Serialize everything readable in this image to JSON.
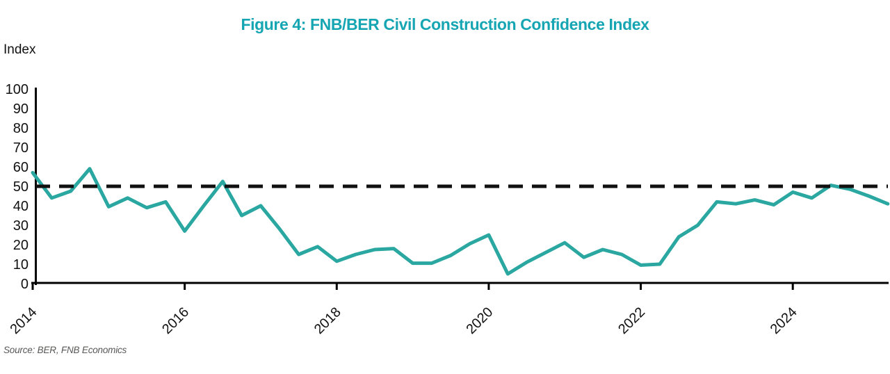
{
  "title": "Figure 4: FNB/BER Civil Construction Confidence Index",
  "y_axis_label": "Index",
  "source": "Source: BER, FNB Economics",
  "colors": {
    "title": "#16a5b2",
    "line": "#29a7a0",
    "axis": "#000000",
    "reference_line": "#111111",
    "tick_text": "#111111",
    "source_text": "#575756"
  },
  "chart_data": {
    "type": "line",
    "title": "Figure 4: FNB/BER Civil Construction Confidence Index",
    "ylabel": "Index",
    "xlabel": "",
    "frequency": "quarterly",
    "ylim": [
      0,
      100
    ],
    "yticks": [
      100,
      90,
      80,
      70,
      60,
      50,
      40,
      30,
      20,
      10,
      0
    ],
    "xticks": [
      "2014",
      "2016",
      "2018",
      "2020",
      "2022",
      "2024"
    ],
    "reference_line_y": 50,
    "grid": false,
    "legend": "none",
    "series_name": "FNB/BER Civil Construction Confidence Index",
    "x": [
      "2014Q1",
      "2014Q2",
      "2014Q3",
      "2014Q4",
      "2015Q1",
      "2015Q2",
      "2015Q3",
      "2015Q4",
      "2016Q1",
      "2016Q2",
      "2016Q3",
      "2016Q4",
      "2017Q1",
      "2017Q2",
      "2017Q3",
      "2017Q4",
      "2018Q1",
      "2018Q2",
      "2018Q3",
      "2018Q4",
      "2019Q1",
      "2019Q2",
      "2019Q3",
      "2019Q4",
      "2020Q1",
      "2020Q2",
      "2020Q3",
      "2020Q4",
      "2021Q1",
      "2021Q2",
      "2021Q3",
      "2021Q4",
      "2022Q1",
      "2022Q2",
      "2022Q3",
      "2022Q4",
      "2023Q1",
      "2023Q2",
      "2023Q3",
      "2023Q4",
      "2024Q1",
      "2024Q2",
      "2024Q3",
      "2024Q4",
      "2025Q1",
      "2025Q2"
    ],
    "values": [
      57,
      44,
      47.5,
      59,
      39.5,
      44,
      39,
      42,
      27,
      40,
      52.5,
      35,
      40,
      28,
      15,
      19,
      11.5,
      15,
      17.5,
      18,
      10.5,
      10.5,
      14.5,
      20.5,
      25,
      5,
      11,
      16,
      21,
      13.5,
      17.5,
      15,
      9.5,
      10,
      24,
      30,
      42,
      41,
      43,
      40.5,
      47,
      44,
      50.5,
      48.5,
      45,
      41
    ]
  }
}
